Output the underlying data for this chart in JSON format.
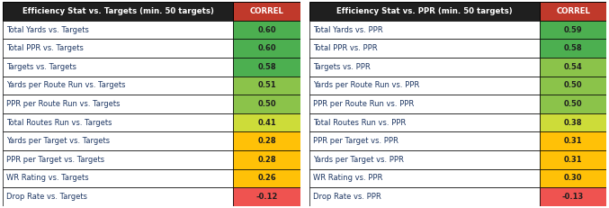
{
  "table1_header": [
    "Efficiency Stat vs. Targets (min. 50 targets)",
    "CORREL"
  ],
  "table1_rows": [
    [
      "Total Yards vs. Targets",
      "0.60"
    ],
    [
      "Total PPR vs. Targets",
      "0.60"
    ],
    [
      "Targets vs. Targets",
      "0.58"
    ],
    [
      "Yards per Route Run vs. Targets",
      "0.51"
    ],
    [
      "PPR per Route Run vs. Targets",
      "0.50"
    ],
    [
      "Total Routes Run vs. Targets",
      "0.41"
    ],
    [
      "Yards per Target vs. Targets",
      "0.28"
    ],
    [
      "PPR per Target vs. Targets",
      "0.28"
    ],
    [
      "WR Rating vs. Targets",
      "0.26"
    ],
    [
      "Drop Rate vs. Targets",
      "-0.12"
    ]
  ],
  "table2_header": [
    "Efficiency Stat vs. PPR (min. 50 targets)",
    "CORREL"
  ],
  "table2_rows": [
    [
      "Total Yards vs. PPR",
      "0.59"
    ],
    [
      "Total PPR vs. PPR",
      "0.58"
    ],
    [
      "Targets vs. PPR",
      "0.54"
    ],
    [
      "Yards per Route Run vs. PPR",
      "0.50"
    ],
    [
      "PPR per Route Run vs. PPR",
      "0.50"
    ],
    [
      "Total Routes Run vs. PPR",
      "0.38"
    ],
    [
      "PPR per Target vs. PPR",
      "0.31"
    ],
    [
      "Yards per Target vs. PPR",
      "0.31"
    ],
    [
      "WR Rating vs. PPR",
      "0.30"
    ],
    [
      "Drop Rate vs. PPR",
      "-0.13"
    ]
  ],
  "correl_values1": [
    0.6,
    0.6,
    0.58,
    0.51,
    0.5,
    0.41,
    0.28,
    0.28,
    0.26,
    -0.12
  ],
  "correl_values2": [
    0.59,
    0.58,
    0.54,
    0.5,
    0.5,
    0.38,
    0.31,
    0.31,
    0.3,
    -0.13
  ],
  "header_stat_bg": "#1F1F1F",
  "header_correl_bg": "#C0392B",
  "header_text_color": "#FFFFFF",
  "stat_text_color": "#1F3864",
  "correl_text_color": "#1F1F1F",
  "row_bg": "#FFFFFF",
  "figsize": [
    6.77,
    2.31
  ],
  "dpi": 100
}
